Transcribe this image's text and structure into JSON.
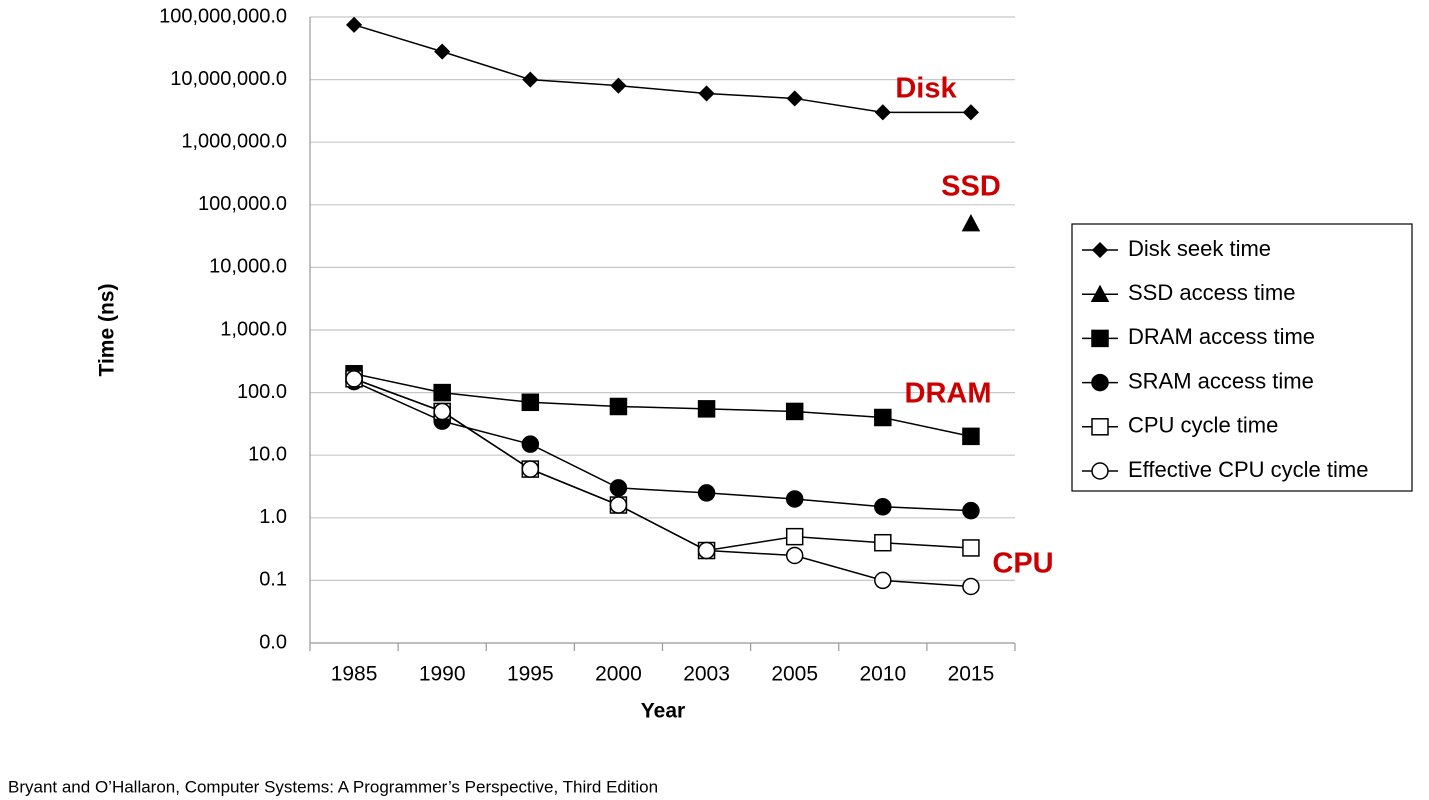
{
  "chart_data": {
    "type": "line",
    "x_label": "Year",
    "y_label": "Time (ns)",
    "categories": [
      "1985",
      "1990",
      "1995",
      "2000",
      "2003",
      "2005",
      "2010",
      "2015"
    ],
    "log_scale_y": true,
    "grid": true,
    "legend": "right",
    "ylim": [
      0.01,
      100000000
    ],
    "yticks": [
      {
        "value": 0.01,
        "label": "0.0"
      },
      0.1,
      {
        "value": 1,
        "label": "1.0"
      },
      {
        "value": 10,
        "label": "10.0"
      },
      {
        "value": 100,
        "label": "100.0"
      },
      {
        "value": 1000,
        "label": "1,000.0"
      },
      {
        "value": 10000,
        "label": "10,000.0"
      },
      {
        "value": 100000,
        "label": "100,000.0"
      },
      {
        "value": 1000000,
        "label": "1,000,000.0"
      },
      {
        "value": 10000000,
        "label": "10,000,000.0"
      },
      {
        "value": 100000000,
        "label": "100,000,000.0"
      }
    ],
    "series": [
      {
        "name": "Disk seek time",
        "color": "#000000",
        "marker": "diamond",
        "fill": "#000000",
        "values": [
          75000000,
          28000000,
          10000000,
          8000000,
          6000000,
          5000000,
          3000000,
          3000000
        ]
      },
      {
        "name": "SSD access time",
        "color": "#000000",
        "marker": "triangle",
        "fill": "#000000",
        "values": [
          null,
          null,
          null,
          null,
          null,
          null,
          null,
          50000
        ]
      },
      {
        "name": "DRAM access time",
        "color": "#000000",
        "marker": "square",
        "fill": "#000000",
        "values": [
          200,
          100,
          70,
          60,
          55,
          50,
          40,
          20
        ]
      },
      {
        "name": "SRAM access time",
        "color": "#000000",
        "marker": "circle",
        "fill": "#000000",
        "values": [
          150,
          35,
          15,
          3,
          2.5,
          2,
          1.5,
          1.3
        ]
      },
      {
        "name": "CPU cycle time",
        "color": "#000000",
        "marker": "square",
        "fill": "#ffffff",
        "values": [
          166,
          50,
          6,
          1.6,
          0.3,
          0.5,
          0.4,
          0.33
        ]
      },
      {
        "name": "Effective CPU cycle time",
        "color": "#000000",
        "marker": "circle",
        "fill": "#ffffff",
        "values": [
          166,
          50,
          6,
          1.6,
          0.3,
          0.25,
          0.1,
          0.08
        ]
      }
    ],
    "annotations": [
      {
        "text": "Disk",
        "color": "#cc0000"
      },
      {
        "text": "SSD",
        "color": "#cc0000"
      },
      {
        "text": "DRAM",
        "color": "#cc0000"
      },
      {
        "text": "CPU",
        "color": "#cc0000"
      }
    ],
    "footer": "Bryant and O’Hallaron, Computer Systems: A Programmer’s Perspective, Third Edition"
  }
}
